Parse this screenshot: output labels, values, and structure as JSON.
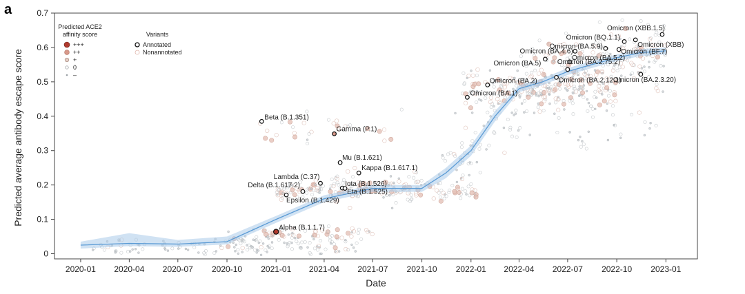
{
  "panel_label": "a",
  "chart_data": {
    "type": "scatter",
    "xlabel": "Date",
    "ylabel": "Predicted average antibody escape score",
    "x_range": [
      "2019-11-13",
      "2023-03-01"
    ],
    "ylim": [
      -0.015,
      0.7
    ],
    "x_ticks": [
      "2020-01",
      "2020-04",
      "2020-07",
      "2020-10",
      "2021-01",
      "2021-04",
      "2021-07",
      "2021-10",
      "2022-01",
      "2022-04",
      "2022-07",
      "2022-10",
      "2023-01"
    ],
    "y_ticks": [
      "0",
      "0.1",
      "0.2",
      "0.3",
      "0.4",
      "0.5",
      "0.6",
      "0.7"
    ],
    "grid": false,
    "legend_affinity": {
      "title": "Predicted ACE2 affinity score",
      "title_lines": [
        "Predicted ACE2",
        "affinity score"
      ],
      "entries": [
        "+++",
        "++",
        "+",
        "0",
        "–"
      ],
      "colors": [
        "#b03a2e",
        "#d8998a",
        "#cfb3a8",
        "#c2c7cc",
        "#b8bcc0"
      ]
    },
    "legend_variants": {
      "title": "Variants",
      "entries": [
        "Annotated",
        "Nonannotated"
      ]
    },
    "trend": {
      "name": "average",
      "color": "#5b9bd5",
      "band_color": "#a9cbea",
      "x": [
        "2020-01-01",
        "2020-04-01",
        "2020-07-01",
        "2020-10-01",
        "2021-01-01",
        "2021-04-01",
        "2021-07-01",
        "2021-10-01",
        "2021-11-15",
        "2022-01-01",
        "2022-02-15",
        "2022-04-01",
        "2022-05-15",
        "2022-07-01",
        "2022-08-15",
        "2022-10-01",
        "2022-11-15",
        "2023-01-01"
      ],
      "y": [
        0.025,
        0.03,
        0.028,
        0.035,
        0.1,
        0.16,
        0.19,
        0.19,
        0.235,
        0.3,
        0.4,
        0.48,
        0.5,
        0.53,
        0.55,
        0.57,
        0.585,
        0.59
      ],
      "lower": [
        0.015,
        0.022,
        0.02,
        0.027,
        0.09,
        0.15,
        0.18,
        0.18,
        0.22,
        0.285,
        0.385,
        0.47,
        0.49,
        0.52,
        0.54,
        0.56,
        0.575,
        0.58
      ],
      "upper": [
        0.035,
        0.06,
        0.04,
        0.05,
        0.11,
        0.17,
        0.2,
        0.2,
        0.25,
        0.315,
        0.415,
        0.49,
        0.51,
        0.54,
        0.56,
        0.58,
        0.595,
        0.6
      ]
    },
    "annotated_variants": [
      {
        "label": "Beta (B.1.351)",
        "date": "2020-12-05",
        "y": 0.385
      },
      {
        "label": "Gamma (P.1)",
        "date": "2021-04-20",
        "y": 0.349
      },
      {
        "label": "Mu (B.1.621)",
        "date": "2021-05-01",
        "y": 0.265
      },
      {
        "label": "Kappa (B.1.617.1)",
        "date": "2021-06-05",
        "y": 0.235
      },
      {
        "label": "Lambda (C.37)",
        "date": "2021-03-25",
        "y": 0.205
      },
      {
        "label": "Iota (B.1.526)",
        "date": "2021-05-05",
        "y": 0.191
      },
      {
        "label": "Delta (B.1.617.2)",
        "date": "2021-02-20",
        "y": 0.181
      },
      {
        "label": "Eta (B.1.525)",
        "date": "2021-05-10",
        "y": 0.19
      },
      {
        "label": "Epsilon (B.1.429)",
        "date": "2021-01-20",
        "y": 0.171
      },
      {
        "label": "Alpha (B.1.1.7)",
        "date": "2021-01-01",
        "y": 0.064
      },
      {
        "label": "Omicron (BA.1)",
        "date": "2021-12-25",
        "y": 0.455
      },
      {
        "label": "Omicron (BA.2)",
        "date": "2022-02-01",
        "y": 0.491
      },
      {
        "label": "Omicron (BA.5)",
        "date": "2022-05-20",
        "y": 0.566
      },
      {
        "label": "Omicron (BA.4.6)",
        "date": "2022-07-15",
        "y": 0.589
      },
      {
        "label": "Omicron (BA.5.9)",
        "date": "2022-09-10",
        "y": 0.597
      },
      {
        "label": "Omicron (BA.5.2)",
        "date": "2022-07-05",
        "y": 0.558
      },
      {
        "label": "Omicron (BA.2.75.2)",
        "date": "2022-07-01",
        "y": 0.536
      },
      {
        "label": "Omicron (BA.2.12.1)",
        "date": "2022-06-10",
        "y": 0.513
      },
      {
        "label": "Omicron (BQ.1.1)",
        "date": "2022-10-15",
        "y": 0.617
      },
      {
        "label": "Omicron (XBB.1.5)",
        "date": "2022-12-25",
        "y": 0.638
      },
      {
        "label": "Omicron (XBB)",
        "date": "2022-11-05",
        "y": 0.622
      },
      {
        "label": "Omicron (BF.7)",
        "date": "2022-10-05",
        "y": 0.594
      },
      {
        "label": "Omicron (BA.2.3.20)",
        "date": "2022-11-15",
        "y": 0.522
      }
    ]
  }
}
